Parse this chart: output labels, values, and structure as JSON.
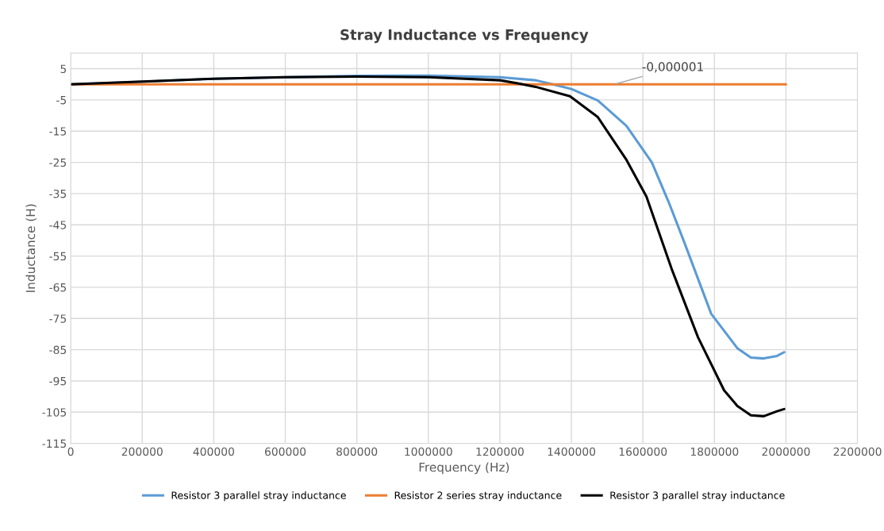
{
  "chart_data": {
    "type": "line",
    "title": "Stray Inductance vs Frequency",
    "xlabel": "Frequency (Hz)",
    "ylabel": "Inductance (H)",
    "xlim": [
      0,
      2200000
    ],
    "xticks": [
      0,
      200000,
      400000,
      600000,
      800000,
      1000000,
      1200000,
      1400000,
      1600000,
      1800000,
      2000000,
      2200000
    ],
    "ylim": [
      -115,
      10
    ],
    "yticks": [
      -115,
      -105,
      -95,
      -85,
      -75,
      -65,
      -55,
      -45,
      -35,
      -25,
      -15,
      -5,
      5
    ],
    "grid": true,
    "legend": "bottom",
    "marker": "none",
    "line_style": "solid",
    "series": [
      {
        "name": "Resistor 3 parallel stray inductance",
        "color": "#5b9bd5",
        "x": [
          0,
          200000,
          400000,
          600000,
          800000,
          1000000,
          1200000,
          1300000,
          1348000,
          1400000,
          1474000,
          1554000,
          1625000,
          1672000,
          1716000,
          1791000,
          1864000,
          1902000,
          1938000,
          1975000,
          1995000
        ],
        "values": [
          0,
          0.8,
          1.8,
          2.3,
          2.7,
          2.8,
          2.3,
          1.3,
          0,
          -1.5,
          -5.2,
          -13.3,
          -25,
          -37.7,
          -50.7,
          -73.5,
          -84.5,
          -87.5,
          -87.8,
          -87,
          -85.8
        ]
      },
      {
        "name": "Resistor 2 series stray inductance",
        "color": "#ed7d31",
        "x": [
          0,
          2000000
        ],
        "values": [
          -1e-06,
          -1e-06
        ]
      },
      {
        "name": "Resistor 3 parallel stray inductance",
        "color": "#000000",
        "x": [
          0,
          200000,
          400000,
          600000,
          800000,
          1000000,
          1200000,
          1250000,
          1300000,
          1396000,
          1474000,
          1554000,
          1610000,
          1680000,
          1754000,
          1827000,
          1864000,
          1902000,
          1938000,
          1975000,
          1995000
        ],
        "values": [
          0,
          0.9,
          1.8,
          2.3,
          2.5,
          2.3,
          1.3,
          0.3,
          -0.8,
          -3.8,
          -10.5,
          -24.2,
          -36,
          -59,
          -81,
          -98,
          -103,
          -106,
          -106.3,
          -104.7,
          -104
        ]
      }
    ],
    "annotations": [
      {
        "text": "-0,000001",
        "x": 1520000,
        "y": -1e-06
      }
    ]
  }
}
